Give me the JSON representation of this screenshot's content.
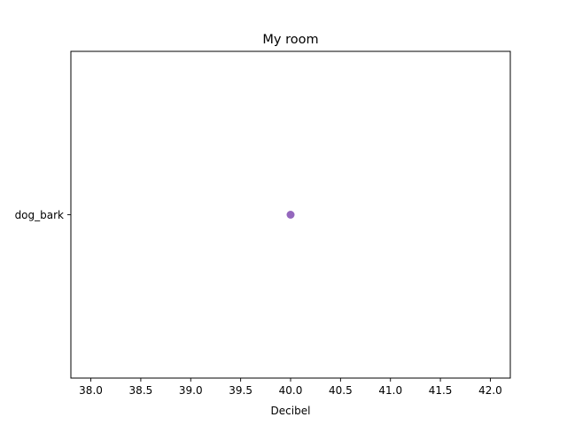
{
  "chart_data": {
    "type": "scatter",
    "title": "My room",
    "xlabel": "Decibel",
    "ylabel": "",
    "xlim": [
      37.8,
      42.2
    ],
    "xticks": [
      "38.0",
      "38.5",
      "39.0",
      "39.5",
      "40.0",
      "40.5",
      "41.0",
      "41.5",
      "42.0"
    ],
    "categories": [
      "dog_bark"
    ],
    "points": [
      {
        "x": 40.0,
        "y": "dog_bark"
      }
    ],
    "marker_color": "#9467bd",
    "grid": false,
    "legend": false
  }
}
